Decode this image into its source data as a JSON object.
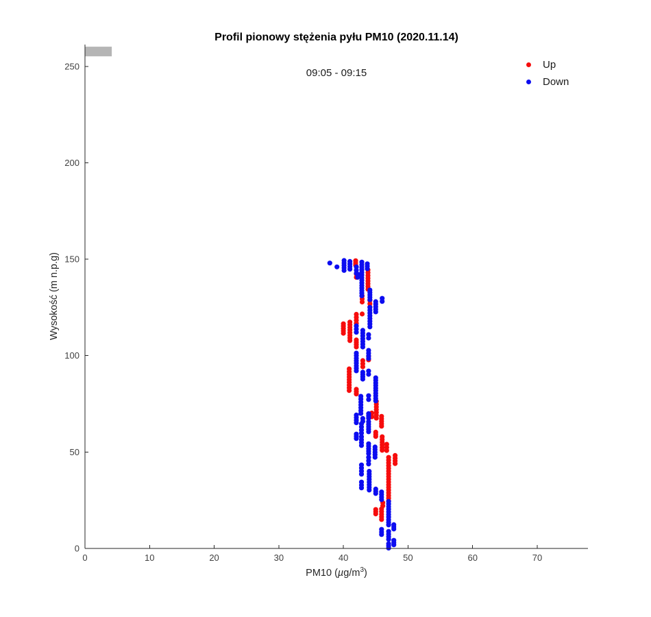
{
  "chart_data": {
    "type": "scatter",
    "title": "Profil pionowy stężenia pyłu PM10 (2020.11.14)",
    "subtitle": "09:05 - 09:15",
    "xlabel_text": "PM10 (µg/m³)",
    "xlabel_parts": {
      "pre": "PM10 (",
      "mu": "µ",
      "mid": "g/m",
      "sup": "3",
      "post": ")"
    },
    "ylabel": "Wysokość (m n.p.g)",
    "xlim": [
      0,
      77.85
    ],
    "ylim": [
      0,
      261.3
    ],
    "xticks": [
      0,
      10,
      20,
      30,
      40,
      50,
      60,
      70
    ],
    "yticks": [
      0,
      50,
      100,
      150,
      200,
      250
    ],
    "grid": false,
    "box": false,
    "axis_color": "#262626",
    "tick_label_color": "#404040",
    "background": "#ffffff",
    "legend_position": "top-right-outside",
    "marker": {
      "radius_px": 3.6,
      "point_spacing_m": 1.4
    },
    "annotation_bar": {
      "x0": 0,
      "x1": 4.15,
      "y0": 255.2,
      "y1": 260.2,
      "color": "#b5b5b5"
    },
    "series": [
      {
        "name": "Up",
        "color": "#f60d0d",
        "segments_x_yfrom_yto": [
          [
            41.9,
            146.9,
            149.2
          ],
          [
            43.8,
            134.4,
            144.4
          ],
          [
            42.0,
            140.6,
            142.4
          ],
          [
            42.9,
            127.8,
            131.0
          ],
          [
            44.1,
            125.2,
            128.6
          ],
          [
            42.9,
            121.6,
            121.6
          ],
          [
            42.0,
            116.7,
            121.4
          ],
          [
            41.0,
            107.8,
            117.4
          ],
          [
            40.0,
            111.6,
            116.5
          ],
          [
            42.0,
            104.5,
            108.1
          ],
          [
            43.9,
            97.8,
            99.6
          ],
          [
            43.0,
            94.2,
            97.4
          ],
          [
            40.9,
            81.9,
            93.1
          ],
          [
            42.0,
            80.1,
            82.5
          ],
          [
            44.4,
            68.3,
            70.2
          ],
          [
            45.1,
            67.6,
            76.3
          ],
          [
            45.9,
            63.4,
            68.5
          ],
          [
            45.0,
            58.1,
            60.3
          ],
          [
            46.0,
            50.9,
            57.9
          ],
          [
            46.7,
            50.8,
            54.0
          ],
          [
            48.0,
            44.0,
            48.2
          ],
          [
            47.0,
            24.6,
            47.2
          ],
          [
            46.1,
            22.1,
            23.7
          ],
          [
            45.0,
            17.9,
            20.2
          ],
          [
            45.9,
            15.0,
            20.5
          ]
        ]
      },
      {
        "name": "Down",
        "color": "#0d0df0",
        "segments_x_yfrom_yto": [
          [
            37.9,
            148.0,
            148.0
          ],
          [
            39.0,
            146.0,
            146.0
          ],
          [
            40.1,
            144.2,
            149.3
          ],
          [
            41.0,
            144.8,
            148.8
          ],
          [
            42.0,
            142.7,
            146.0
          ],
          [
            42.2,
            140.6,
            142.2
          ],
          [
            42.85,
            131.0,
            148.5
          ],
          [
            43.7,
            145.1,
            147.6
          ],
          [
            44.1,
            129.0,
            134.0
          ],
          [
            46.0,
            128.1,
            129.7
          ],
          [
            45.0,
            122.7,
            128.0
          ],
          [
            44.1,
            114.9,
            125.0
          ],
          [
            42.0,
            112.1,
            115.4
          ],
          [
            43.0,
            104.5,
            113.1
          ],
          [
            43.9,
            109.1,
            110.9
          ],
          [
            43.9,
            98.5,
            102.7
          ],
          [
            42.0,
            92.1,
            101.3
          ],
          [
            43.0,
            87.8,
            91.4
          ],
          [
            43.9,
            90.3,
            92.0
          ],
          [
            45.0,
            76.5,
            88.5
          ],
          [
            43.9,
            77.2,
            79.2
          ],
          [
            42.7,
            70.0,
            78.9
          ],
          [
            42.0,
            65.2,
            69.2
          ],
          [
            43.0,
            65.9,
            67.4
          ],
          [
            43.9,
            67.6,
            69.9
          ],
          [
            42.8,
            59.8,
            64.6
          ],
          [
            43.9,
            60.5,
            65.7
          ],
          [
            42.0,
            57.0,
            59.3
          ],
          [
            42.8,
            53.4,
            57.9
          ],
          [
            43.9,
            49.2,
            54.3
          ],
          [
            44.9,
            47.3,
            52.6
          ],
          [
            43.9,
            43.8,
            47.2
          ],
          [
            42.8,
            38.5,
            43.3
          ],
          [
            44.0,
            30.3,
            40.0
          ],
          [
            42.8,
            31.4,
            34.4
          ],
          [
            45.0,
            28.5,
            30.8
          ],
          [
            45.9,
            25.3,
            29.3
          ],
          [
            47.0,
            12.2,
            24.4
          ],
          [
            47.8,
            10.1,
            12.3
          ],
          [
            45.9,
            7.2,
            9.9
          ],
          [
            47.0,
            4.7,
            8.8
          ],
          [
            47.8,
            1.9,
            4.2
          ],
          [
            47.0,
            0.2,
            2.4
          ]
        ]
      }
    ]
  }
}
